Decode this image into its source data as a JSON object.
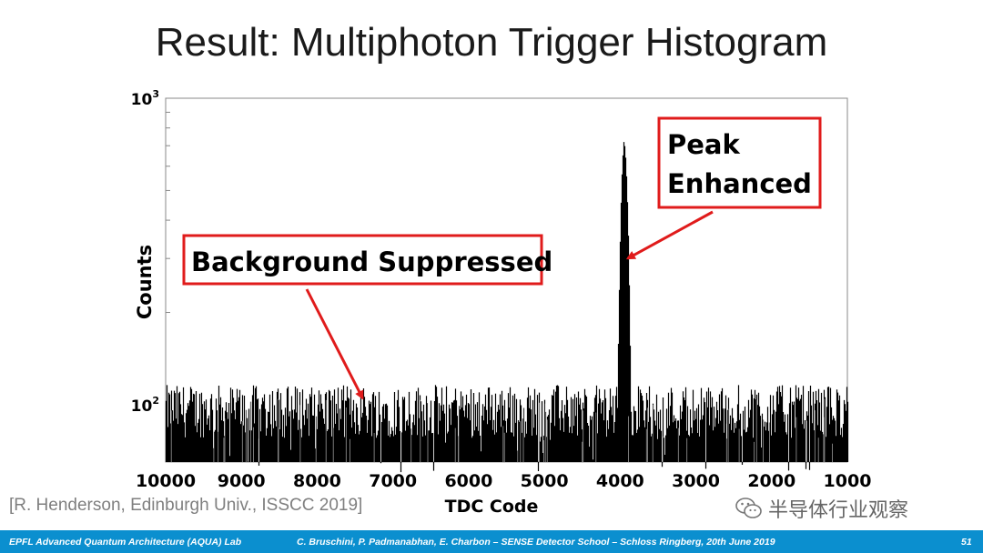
{
  "slide": {
    "title": "Result: Multiphoton Trigger Histogram",
    "citation": "[R. Henderson, Edinburgh Univ., ISSCC 2019]",
    "watermark": "半导体行业观察"
  },
  "footer": {
    "left": "EPFL Advanced Quantum Architecture (AQUA) Lab",
    "center": "C. Bruschini, P. Padmanabhan, E. Charbon – SENSE Detector School – Schloss Ringberg, 20th June 2019",
    "page": "51",
    "color": "#0b8fcf"
  },
  "chart_data": {
    "type": "bar",
    "xlabel": "TDC Code",
    "ylabel": "Counts",
    "xlim": [
      10000,
      1000
    ],
    "x_reversed": true,
    "ylim": [
      65,
      1000
    ],
    "yscale": "log",
    "xticks": [
      10000,
      9000,
      8000,
      7000,
      6000,
      5000,
      4000,
      3000,
      2000,
      1000
    ],
    "yticks": [
      {
        "base": "10",
        "exp": "3",
        "value": 1000
      },
      {
        "base": "10",
        "exp": "2",
        "value": 100
      }
    ],
    "bar_color": "#000000",
    "background_level": 100,
    "peak": {
      "x": 3950,
      "counts": 740
    },
    "annotations": [
      {
        "id": "background",
        "lines": [
          "Background Suppressed"
        ],
        "arrow_to": {
          "x": 7400,
          "y": 105
        }
      },
      {
        "id": "peak",
        "lines": [
          "Peak",
          "Enhanced"
        ],
        "arrow_to": {
          "x": 3900,
          "y": 300
        }
      }
    ],
    "annotation_color": "#e01b1b"
  }
}
